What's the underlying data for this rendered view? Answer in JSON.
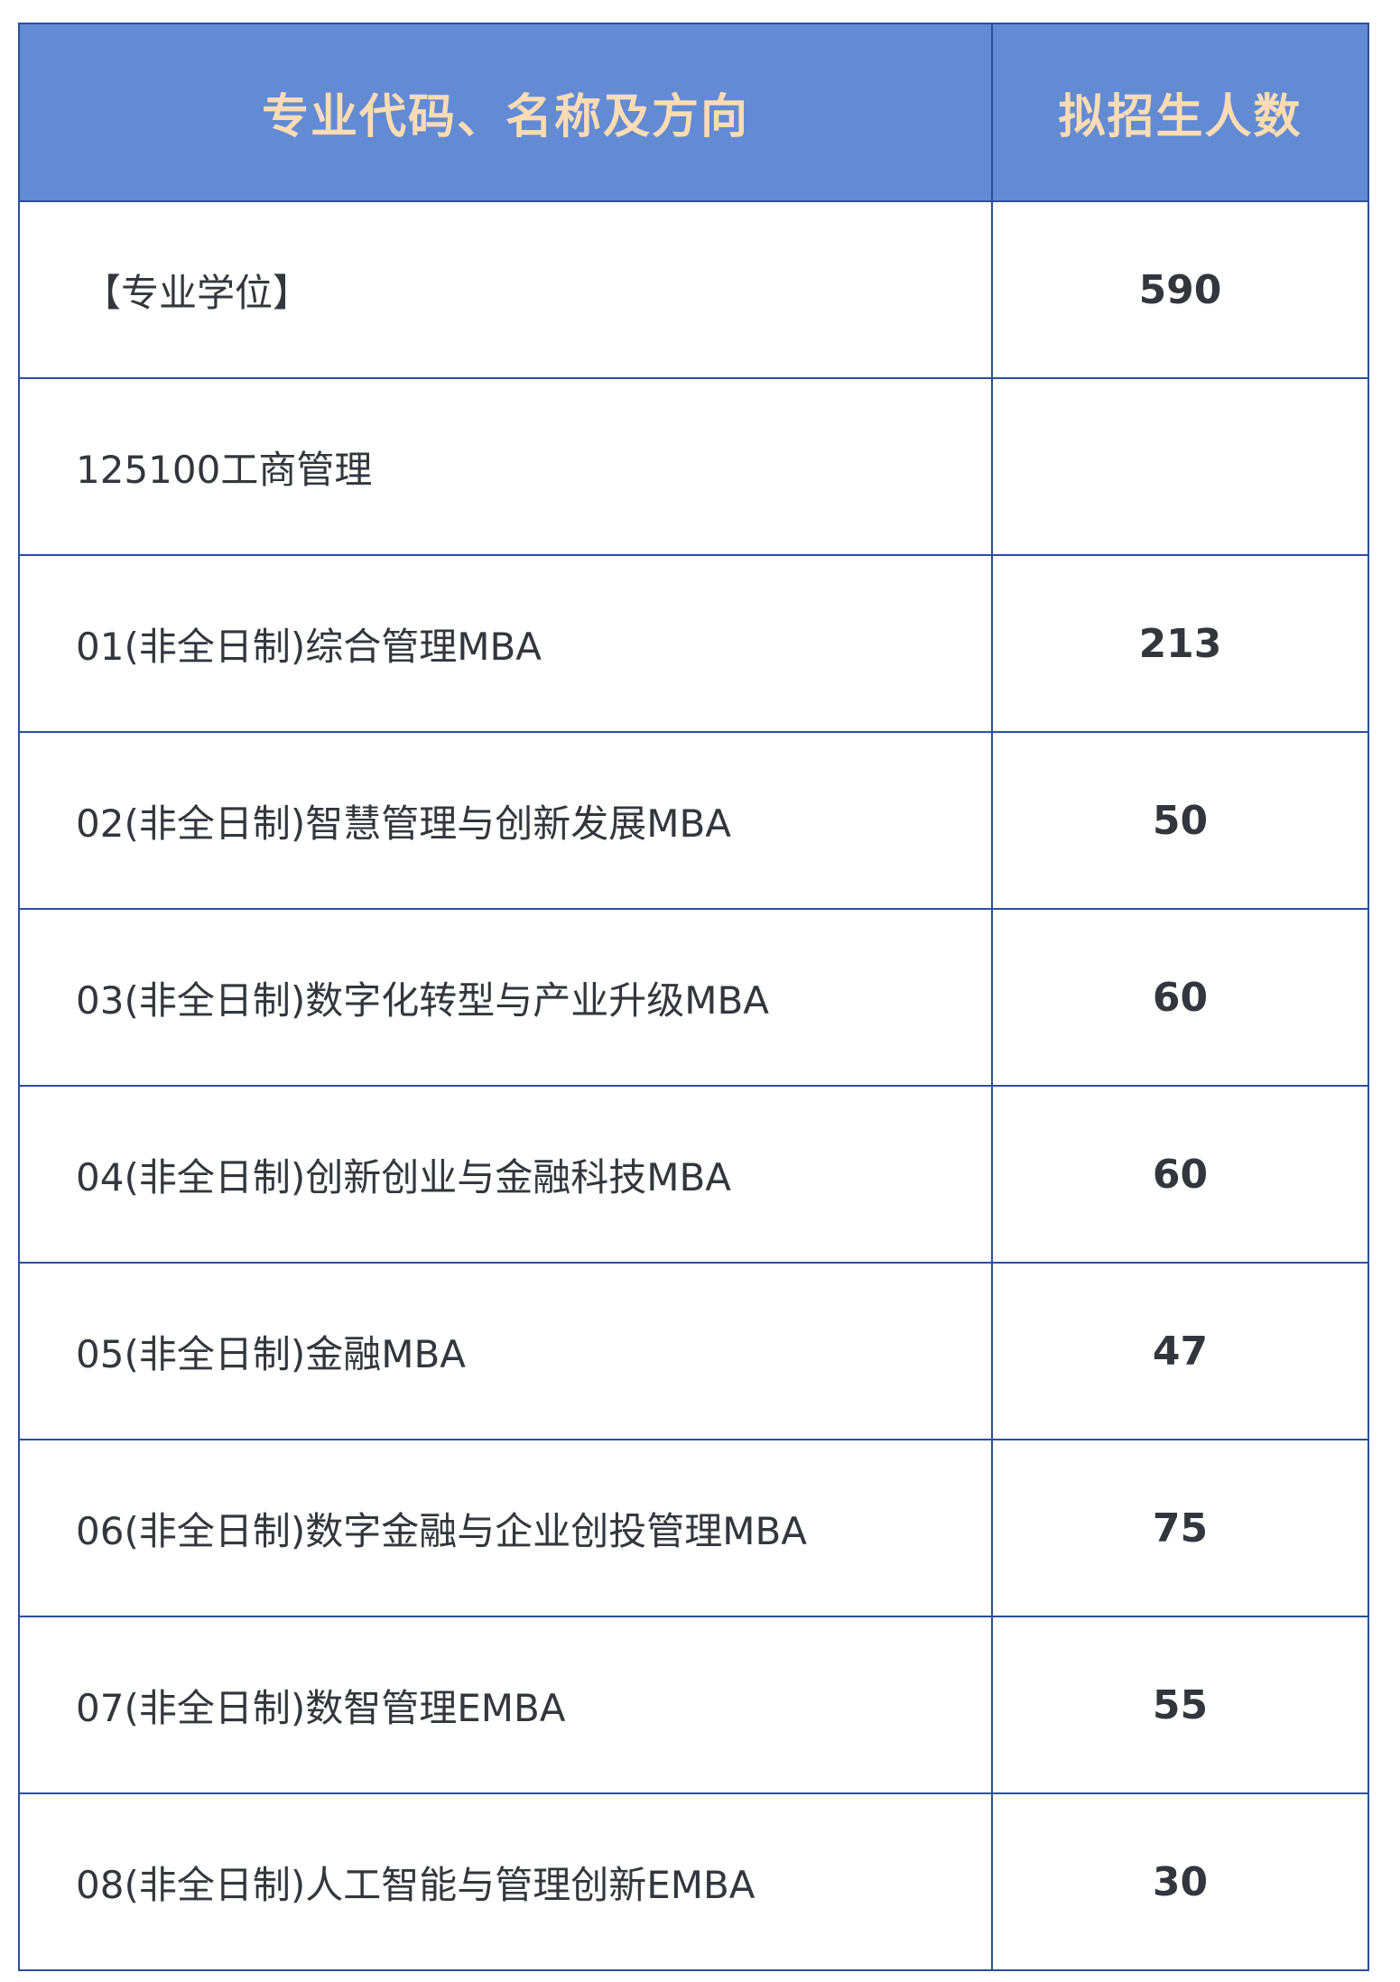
{
  "header": {
    "col_name": "专业代码、名称及方向",
    "col_count": "拟招生人数"
  },
  "colors": {
    "header_bg": "#628bd4",
    "header_text": "#fddcb4",
    "border": "#2b4f9c",
    "text": "#33373d"
  },
  "rows": [
    {
      "name": "【专业学位】",
      "count": "590"
    },
    {
      "name": "125100工商管理",
      "count": ""
    },
    {
      "name": "01(非全日制)综合管理MBA",
      "count": "213"
    },
    {
      "name": "02(非全日制)智慧管理与创新发展MBA",
      "count": "50"
    },
    {
      "name": "03(非全日制)数字化转型与产业升级MBA",
      "count": "60"
    },
    {
      "name": "04(非全日制)创新创业与金融科技MBA",
      "count": "60"
    },
    {
      "name": "05(非全日制)金融MBA",
      "count": "47"
    },
    {
      "name": "06(非全日制)数字金融与企业创投管理MBA",
      "count": "75"
    },
    {
      "name": "07(非全日制)数智管理EMBA",
      "count": "55"
    },
    {
      "name": "08(非全日制)人工智能与管理创新EMBA",
      "count": "30"
    }
  ]
}
